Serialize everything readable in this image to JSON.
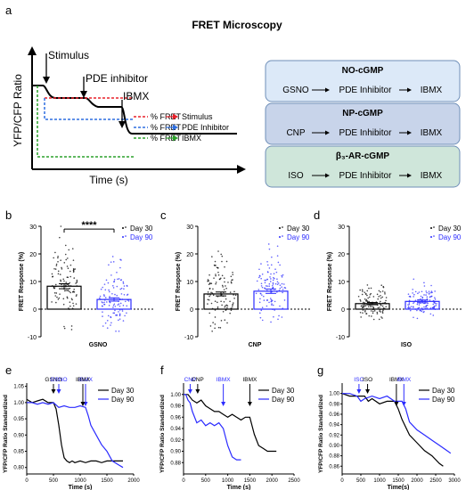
{
  "panel_labels": {
    "a": "a",
    "b": "b",
    "c": "c",
    "d": "d",
    "e": "e",
    "f": "f",
    "g": "g"
  },
  "figure_title": "FRET Microscopy",
  "schematic": {
    "ylabel": "YFP/CFP Ratio",
    "xlabel": "Time (s)",
    "annotations": {
      "stimulus": "Stimulus",
      "pde": "PDE inhibitor",
      "ibmx": "IBMX"
    },
    "legend": [
      {
        "label": "% FRET",
        "target": "Stimulus",
        "color": "#e8202a"
      },
      {
        "label": "% FRET",
        "target": "PDE Inhibitor",
        "color": "#2f6fe0"
      },
      {
        "label": "% FRET",
        "target": "IBMX",
        "color": "#2ca02c"
      }
    ]
  },
  "pathways": [
    {
      "title": "NO-cGMP",
      "steps": [
        "GSNO",
        "PDE Inhibitor",
        "IBMX"
      ],
      "color": "#dce9f8"
    },
    {
      "title": "NP-cGMP",
      "steps": [
        "CNP",
        "PDE Inhibitor",
        "IBMX"
      ],
      "color": "#c8d4ea"
    },
    {
      "title": "β₃-AR-cGMP",
      "steps": [
        "ISO",
        "PDE Inhibitor",
        "IBMX"
      ],
      "color": "#cfe6da"
    }
  ],
  "colors": {
    "day30": "#000000",
    "day90": "#2b2bff"
  },
  "chart_data": [
    {
      "panel": "b",
      "type": "bar",
      "ylabel": "FRET Response (%)",
      "xlabel": "GSNO",
      "ylim": [
        -10,
        30
      ],
      "yticks": [
        -10,
        0,
        10,
        20,
        30
      ],
      "series": [
        {
          "name": "Day 30",
          "value": 8.3,
          "sem": 0.9
        },
        {
          "name": "Day 90",
          "value": 3.5,
          "sem": 0.6
        }
      ],
      "significance": "****"
    },
    {
      "panel": "c",
      "type": "bar",
      "ylabel": "FRET Response (%)",
      "xlabel": "CNP",
      "ylim": [
        -10,
        30
      ],
      "yticks": [
        -10,
        0,
        10,
        20,
        30
      ],
      "series": [
        {
          "name": "Day 30",
          "value": 5.5,
          "sem": 0.7
        },
        {
          "name": "Day 90",
          "value": 6.5,
          "sem": 0.8
        }
      ]
    },
    {
      "panel": "d",
      "type": "bar",
      "ylabel": "FRET Response (%)",
      "xlabel": "ISO",
      "ylim": [
        -10,
        30
      ],
      "yticks": [
        -10,
        0,
        10,
        20,
        30
      ],
      "series": [
        {
          "name": "Day 30",
          "value": 2.0,
          "sem": 0.4
        },
        {
          "name": "Day 90",
          "value": 2.8,
          "sem": 0.5
        }
      ]
    },
    {
      "panel": "e",
      "type": "line",
      "ylabel": "YFP/CFP Ratio Standardized",
      "xlabel": "Time (s)",
      "xlim": [
        0,
        2000
      ],
      "ylim": [
        0.78,
        1.06
      ],
      "xticks": [
        0,
        500,
        1000,
        1500,
        2000
      ],
      "yticks": [
        0.8,
        0.85,
        0.9,
        0.95,
        1.0,
        1.05
      ],
      "series": [
        {
          "name": "Day 30",
          "x": [
            0,
            100,
            200,
            300,
            400,
            500,
            550,
            600,
            650,
            700,
            750,
            800,
            850,
            900,
            1000,
            1100,
            1200,
            1300,
            1400,
            1500,
            1600,
            1700,
            1800
          ],
          "y": [
            1.01,
            1.0,
            1.005,
            1.01,
            1.0,
            1.0,
            0.98,
            0.93,
            0.87,
            0.83,
            0.82,
            0.815,
            0.82,
            0.815,
            0.82,
            0.815,
            0.82,
            0.82,
            0.815,
            0.82,
            0.82,
            0.82,
            0.82
          ]
        },
        {
          "name": "Day 90",
          "x": [
            0,
            100,
            200,
            300,
            400,
            500,
            600,
            700,
            800,
            900,
            1000,
            1100,
            1150,
            1200,
            1300,
            1400,
            1500,
            1600,
            1700,
            1800
          ],
          "y": [
            1.0,
            1.0,
            0.995,
            1.0,
            0.995,
            1.0,
            0.985,
            0.99,
            0.985,
            0.985,
            0.99,
            0.985,
            0.96,
            0.93,
            0.9,
            0.87,
            0.85,
            0.82,
            0.81,
            0.8
          ]
        }
      ],
      "annotations": [
        {
          "text": "GSNO",
          "x": 500,
          "color": "#000000"
        },
        {
          "text": "GSNO",
          "x": 600,
          "color": "#2b2bff"
        },
        {
          "text": "IBMX",
          "x": 1100,
          "color": "#2b2bff"
        },
        {
          "text": "IBMX",
          "x": 1050,
          "color": "#000000"
        }
      ]
    },
    {
      "panel": "f",
      "type": "line",
      "ylabel": "YFP/CFP Ratio Standardized",
      "xlabel": "Time (s)",
      "xlim": [
        0,
        2500
      ],
      "ylim": [
        0.86,
        1.02
      ],
      "xticks": [
        0,
        500,
        1000,
        1500,
        2000,
        2500
      ],
      "yticks": [
        0.88,
        0.9,
        0.92,
        0.94,
        0.96,
        0.98,
        1.0
      ],
      "series": [
        {
          "name": "Day 30",
          "x": [
            0,
            100,
            200,
            300,
            400,
            500,
            600,
            700,
            800,
            900,
            1000,
            1100,
            1200,
            1300,
            1400,
            1500,
            1600,
            1700,
            1800,
            1900,
            2000,
            2100
          ],
          "y": [
            1.0,
            1.0,
            0.99,
            0.985,
            0.99,
            0.98,
            0.975,
            0.97,
            0.97,
            0.965,
            0.96,
            0.965,
            0.96,
            0.955,
            0.96,
            0.96,
            0.93,
            0.91,
            0.905,
            0.9,
            0.9,
            0.9
          ]
        },
        {
          "name": "Day 90",
          "x": [
            0,
            50,
            100,
            150,
            200,
            300,
            400,
            500,
            600,
            700,
            800,
            900,
            1000,
            1100,
            1200,
            1300
          ],
          "y": [
            1.0,
            1.0,
            0.99,
            0.985,
            0.97,
            0.95,
            0.955,
            0.945,
            0.95,
            0.945,
            0.95,
            0.94,
            0.91,
            0.89,
            0.885,
            0.885
          ]
        }
      ],
      "annotations": [
        {
          "text": "CNP",
          "x": 150,
          "color": "#2b2bff"
        },
        {
          "text": "CNP",
          "x": 320,
          "color": "#000000"
        },
        {
          "text": "IBMX",
          "x": 900,
          "color": "#2b2bff"
        },
        {
          "text": "IBMX",
          "x": 1500,
          "color": "#000000"
        }
      ]
    },
    {
      "panel": "g",
      "type": "line",
      "ylabel": "YFP/CFP Ratio Standardized",
      "xlabel": "Time(s)",
      "xlim": [
        0,
        3000
      ],
      "ylim": [
        0.845,
        1.02
      ],
      "xticks": [
        0,
        500,
        1000,
        1500,
        2000,
        2500,
        3000
      ],
      "yticks": [
        0.86,
        0.88,
        0.9,
        0.92,
        0.94,
        0.96,
        0.98,
        1.0
      ],
      "series": [
        {
          "name": "Day 30",
          "x": [
            0,
            200,
            400,
            600,
            700,
            800,
            1000,
            1200,
            1400,
            1500,
            1600,
            1800,
            2000,
            2200,
            2400,
            2600,
            2700
          ],
          "y": [
            1.0,
            0.995,
            0.995,
            0.995,
            0.985,
            0.99,
            0.98,
            0.985,
            0.985,
            0.97,
            0.95,
            0.92,
            0.905,
            0.89,
            0.88,
            0.865,
            0.86
          ]
        },
        {
          "name": "Day 90",
          "x": [
            0,
            200,
            400,
            500,
            600,
            800,
            1000,
            1200,
            1400,
            1600,
            1700,
            1800,
            2000,
            2200,
            2400,
            2600,
            2800,
            2900
          ],
          "y": [
            1.0,
            1.0,
            0.995,
            0.985,
            0.99,
            0.995,
            0.99,
            0.995,
            0.985,
            0.985,
            0.97,
            0.945,
            0.93,
            0.92,
            0.91,
            0.9,
            0.89,
            0.885
          ]
        }
      ],
      "annotations": [
        {
          "text": "ISO",
          "x": 450,
          "color": "#2b2bff"
        },
        {
          "text": "ISO",
          "x": 680,
          "color": "#000000"
        },
        {
          "text": "IBMX",
          "x": 1450,
          "color": "#000000"
        },
        {
          "text": "IBMX",
          "x": 1650,
          "color": "#2b2bff"
        }
      ]
    }
  ]
}
